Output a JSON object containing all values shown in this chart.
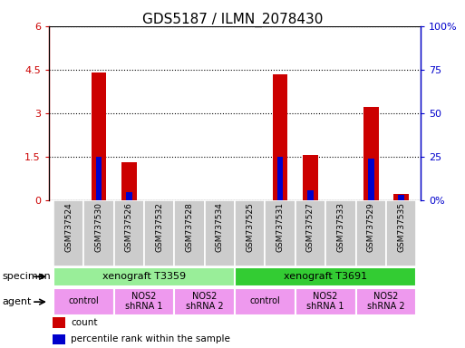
{
  "title": "GDS5187 / ILMN_2078430",
  "samples": [
    "GSM737524",
    "GSM737530",
    "GSM737526",
    "GSM737532",
    "GSM737528",
    "GSM737534",
    "GSM737525",
    "GSM737531",
    "GSM737527",
    "GSM737533",
    "GSM737529",
    "GSM737535"
  ],
  "count_values": [
    0.0,
    4.4,
    1.3,
    0.0,
    0.0,
    0.0,
    0.0,
    4.35,
    1.57,
    0.0,
    3.2,
    0.22
  ],
  "percentile_values": [
    0.0,
    25.0,
    4.5,
    0.0,
    0.0,
    0.0,
    0.0,
    25.0,
    5.5,
    0.0,
    24.0,
    3.0
  ],
  "ylim_left": [
    0,
    6
  ],
  "ylim_right": [
    0,
    100
  ],
  "yticks_left": [
    0,
    1.5,
    3.0,
    4.5,
    6.0
  ],
  "yticks_right": [
    0,
    25,
    50,
    75,
    100
  ],
  "ytick_labels_left": [
    "0",
    "1.5",
    "3",
    "4.5",
    "6"
  ],
  "ytick_labels_right": [
    "0",
    "25",
    "50",
    "75",
    "100%"
  ],
  "count_color": "#cc0000",
  "percentile_color": "#0000cc",
  "bar_width": 0.5,
  "pct_bar_width": 0.2,
  "specimen_row": [
    {
      "label": "xenograft T3359",
      "start": 0,
      "end": 5,
      "color": "#99ee99"
    },
    {
      "label": "xenograft T3691",
      "start": 6,
      "end": 11,
      "color": "#33cc33"
    }
  ],
  "agent_row": [
    {
      "label": "control",
      "start": 0,
      "end": 1,
      "color": "#ee99ee"
    },
    {
      "label": "NOS2\nshRNA 1",
      "start": 2,
      "end": 3,
      "color": "#ee99ee"
    },
    {
      "label": "NOS2\nshRNA 2",
      "start": 4,
      "end": 5,
      "color": "#ee99ee"
    },
    {
      "label": "control",
      "start": 6,
      "end": 7,
      "color": "#ee99ee"
    },
    {
      "label": "NOS2\nshRNA 1",
      "start": 8,
      "end": 9,
      "color": "#ee99ee"
    },
    {
      "label": "NOS2\nshRNA 2",
      "start": 10,
      "end": 11,
      "color": "#ee99ee"
    }
  ],
  "legend_items": [
    {
      "label": "count",
      "color": "#cc0000"
    },
    {
      "label": "percentile rank within the sample",
      "color": "#0000cc"
    }
  ],
  "grid_linestyle": "dotted",
  "tick_label_bg": "#cccccc"
}
